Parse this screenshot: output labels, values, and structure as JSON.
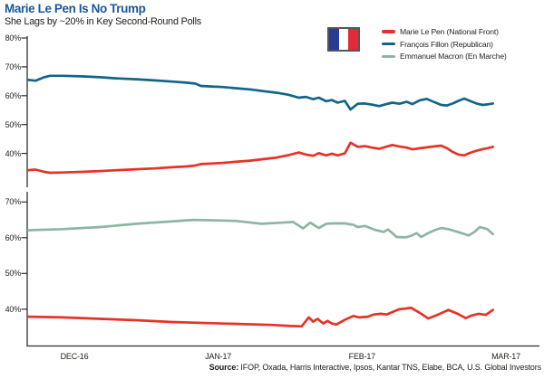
{
  "header": {
    "title": "Marie Le Pen Is No Trump",
    "subtitle": "She Lags by ~20% in Key Second-Round Polls"
  },
  "legend": {
    "flag_icon": "france-flag",
    "items": [
      {
        "label": "Marie Le Pen (National Front)",
        "color": "#e73228"
      },
      {
        "label": "François Fillon (Republican)",
        "color": "#136587"
      },
      {
        "label": "Emmanuel Macron (En Marche)",
        "color": "#8eb5a2"
      }
    ]
  },
  "source": {
    "prefix": "Source:",
    "text": " IFOP, Oxada, Harris Interactive, Ipsos, Kantar TNS, Elabe, BCA, U.S. Global Investors"
  },
  "colors": {
    "title": "#19579b",
    "axis": "#2f2f2d",
    "lepen_red": "#e73228",
    "fillon_blue": "#136587",
    "macron_green": "#8eb5a2"
  },
  "chart_data": [
    {
      "type": "line",
      "panel": "top",
      "subtitle_context": "Second-round poll: Le Pen vs Fillon",
      "x_unit": "months after DEC-16 tick",
      "ylim": [
        28,
        81.5
      ],
      "xlim": [
        -0.33,
        3.24
      ],
      "grid": false,
      "legend_position": "top-right",
      "ytick_suffix": "%",
      "yticks": [
        80,
        70,
        60,
        50,
        40
      ],
      "series": [
        {
          "name": "François Fillon (Republican)",
          "color": "#136587",
          "points": [
            [
              -0.32,
              65.5
            ],
            [
              -0.27,
              65.2
            ],
            [
              -0.21,
              66.4
            ],
            [
              -0.17,
              66.9
            ],
            [
              -0.08,
              66.9
            ],
            [
              0.05,
              66.7
            ],
            [
              0.18,
              66.4
            ],
            [
              0.3,
              66.0
            ],
            [
              0.43,
              65.7
            ],
            [
              0.56,
              65.3
            ],
            [
              0.68,
              64.9
            ],
            [
              0.78,
              64.5
            ],
            [
              0.84,
              64.2
            ],
            [
              0.88,
              63.4
            ],
            [
              0.95,
              63.2
            ],
            [
              1.03,
              63.0
            ],
            [
              1.12,
              62.6
            ],
            [
              1.22,
              62.2
            ],
            [
              1.31,
              61.6
            ],
            [
              1.41,
              61.0
            ],
            [
              1.49,
              60.3
            ],
            [
              1.56,
              59.3
            ],
            [
              1.61,
              59.6
            ],
            [
              1.66,
              58.8
            ],
            [
              1.7,
              59.3
            ],
            [
              1.75,
              58.1
            ],
            [
              1.79,
              58.5
            ],
            [
              1.83,
              57.6
            ],
            [
              1.88,
              58.2
            ],
            [
              1.92,
              55.2
            ],
            [
              1.97,
              57.2
            ],
            [
              2.02,
              57.3
            ],
            [
              2.07,
              56.9
            ],
            [
              2.12,
              56.4
            ],
            [
              2.16,
              57.0
            ],
            [
              2.21,
              57.6
            ],
            [
              2.26,
              57.2
            ],
            [
              2.31,
              57.9
            ],
            [
              2.35,
              57.1
            ],
            [
              2.4,
              58.4
            ],
            [
              2.45,
              58.9
            ],
            [
              2.5,
              57.8
            ],
            [
              2.55,
              56.8
            ],
            [
              2.59,
              56.6
            ],
            [
              2.63,
              57.3
            ],
            [
              2.67,
              58.2
            ],
            [
              2.71,
              59.0
            ],
            [
              2.75,
              58.2
            ],
            [
              2.8,
              57.2
            ],
            [
              2.84,
              56.8
            ],
            [
              2.87,
              57.0
            ],
            [
              2.91,
              57.3
            ]
          ]
        },
        {
          "name": "Marie Le Pen (National Front)",
          "color": "#e73228",
          "points": [
            [
              -0.32,
              34.2
            ],
            [
              -0.27,
              34.4
            ],
            [
              -0.21,
              33.6
            ],
            [
              -0.17,
              33.3
            ],
            [
              -0.08,
              33.4
            ],
            [
              0.05,
              33.6
            ],
            [
              0.18,
              33.9
            ],
            [
              0.3,
              34.2
            ],
            [
              0.43,
              34.5
            ],
            [
              0.56,
              34.8
            ],
            [
              0.68,
              35.2
            ],
            [
              0.78,
              35.5
            ],
            [
              0.84,
              35.8
            ],
            [
              0.88,
              36.3
            ],
            [
              0.95,
              36.5
            ],
            [
              1.03,
              36.7
            ],
            [
              1.12,
              37.1
            ],
            [
              1.22,
              37.5
            ],
            [
              1.31,
              38.0
            ],
            [
              1.41,
              38.6
            ],
            [
              1.49,
              39.4
            ],
            [
              1.56,
              40.3
            ],
            [
              1.61,
              39.6
            ],
            [
              1.66,
              39.2
            ],
            [
              1.7,
              40.1
            ],
            [
              1.75,
              39.3
            ],
            [
              1.79,
              39.9
            ],
            [
              1.83,
              39.3
            ],
            [
              1.88,
              40.0
            ],
            [
              1.92,
              43.7
            ],
            [
              1.97,
              42.3
            ],
            [
              2.02,
              42.5
            ],
            [
              2.07,
              42.0
            ],
            [
              2.12,
              41.6
            ],
            [
              2.16,
              42.2
            ],
            [
              2.21,
              42.9
            ],
            [
              2.26,
              42.4
            ],
            [
              2.31,
              42.0
            ],
            [
              2.35,
              41.4
            ],
            [
              2.4,
              41.8
            ],
            [
              2.45,
              42.1
            ],
            [
              2.5,
              42.4
            ],
            [
              2.55,
              42.7
            ],
            [
              2.59,
              41.8
            ],
            [
              2.63,
              40.5
            ],
            [
              2.67,
              39.6
            ],
            [
              2.71,
              39.3
            ],
            [
              2.75,
              40.2
            ],
            [
              2.8,
              41.0
            ],
            [
              2.84,
              41.5
            ],
            [
              2.87,
              41.8
            ],
            [
              2.91,
              42.3
            ]
          ]
        }
      ]
    },
    {
      "type": "line",
      "panel": "bottom",
      "subtitle_context": "Second-round poll: Le Pen vs Macron",
      "x_unit": "months after DEC-16 tick",
      "ylim": [
        30,
        72
      ],
      "xlim": [
        -0.33,
        3.24
      ],
      "grid": false,
      "ytick_suffix": "%",
      "yticks": [
        70,
        60,
        50,
        40
      ],
      "xticks": {
        "positions": [
          0,
          1,
          2,
          3
        ],
        "labels": [
          "DEC-16",
          "JAN-17",
          "FEB-17",
          "MAR-17"
        ]
      },
      "series": [
        {
          "name": "Emmanuel Macron (En Marche)",
          "color": "#8eb5a2",
          "points": [
            [
              -0.32,
              62.1
            ],
            [
              -0.08,
              62.4
            ],
            [
              0.18,
              63.0
            ],
            [
              0.43,
              63.9
            ],
            [
              0.62,
              64.4
            ],
            [
              0.83,
              65.0
            ],
            [
              1.03,
              64.8
            ],
            [
              1.12,
              64.7
            ],
            [
              1.3,
              63.9
            ],
            [
              1.44,
              64.2
            ],
            [
              1.52,
              64.4
            ],
            [
              1.59,
              62.6
            ],
            [
              1.64,
              64.2
            ],
            [
              1.7,
              62.7
            ],
            [
              1.75,
              63.9
            ],
            [
              1.8,
              64.0
            ],
            [
              1.88,
              64.0
            ],
            [
              1.94,
              63.6
            ],
            [
              1.97,
              63.0
            ],
            [
              2.02,
              63.3
            ],
            [
              2.09,
              62.2
            ],
            [
              2.15,
              61.6
            ],
            [
              2.18,
              62.3
            ],
            [
              2.21,
              61.3
            ],
            [
              2.24,
              60.2
            ],
            [
              2.3,
              60.1
            ],
            [
              2.34,
              60.5
            ],
            [
              2.38,
              61.3
            ],
            [
              2.41,
              60.2
            ],
            [
              2.46,
              61.3
            ],
            [
              2.51,
              62.2
            ],
            [
              2.55,
              62.7
            ],
            [
              2.6,
              62.4
            ],
            [
              2.65,
              61.8
            ],
            [
              2.7,
              61.2
            ],
            [
              2.74,
              60.6
            ],
            [
              2.78,
              61.6
            ],
            [
              2.82,
              63.0
            ],
            [
              2.87,
              62.4
            ],
            [
              2.91,
              61.0
            ]
          ]
        },
        {
          "name": "Marie Le Pen (National Front)",
          "color": "#e73228",
          "points": [
            [
              -0.32,
              37.9
            ],
            [
              -0.08,
              37.7
            ],
            [
              0.18,
              37.3
            ],
            [
              0.43,
              36.9
            ],
            [
              0.68,
              36.4
            ],
            [
              0.93,
              36.1
            ],
            [
              1.19,
              35.8
            ],
            [
              1.37,
              35.6
            ],
            [
              1.5,
              35.3
            ],
            [
              1.58,
              35.2
            ],
            [
              1.63,
              37.7
            ],
            [
              1.66,
              36.5
            ],
            [
              1.69,
              37.3
            ],
            [
              1.73,
              36.0
            ],
            [
              1.76,
              36.7
            ],
            [
              1.79,
              36.0
            ],
            [
              1.82,
              35.7
            ],
            [
              1.88,
              37.0
            ],
            [
              1.94,
              38.1
            ],
            [
              1.98,
              37.7
            ],
            [
              2.04,
              37.9
            ],
            [
              2.08,
              38.5
            ],
            [
              2.13,
              38.7
            ],
            [
              2.17,
              38.5
            ],
            [
              2.23,
              39.5
            ],
            [
              2.26,
              40.0
            ],
            [
              2.31,
              40.2
            ],
            [
              2.34,
              40.4
            ],
            [
              2.4,
              39.0
            ],
            [
              2.46,
              37.4
            ],
            [
              2.53,
              38.5
            ],
            [
              2.6,
              39.8
            ],
            [
              2.67,
              38.6
            ],
            [
              2.72,
              37.5
            ],
            [
              2.76,
              38.2
            ],
            [
              2.81,
              38.7
            ],
            [
              2.86,
              38.4
            ],
            [
              2.91,
              39.8
            ]
          ]
        }
      ]
    }
  ]
}
